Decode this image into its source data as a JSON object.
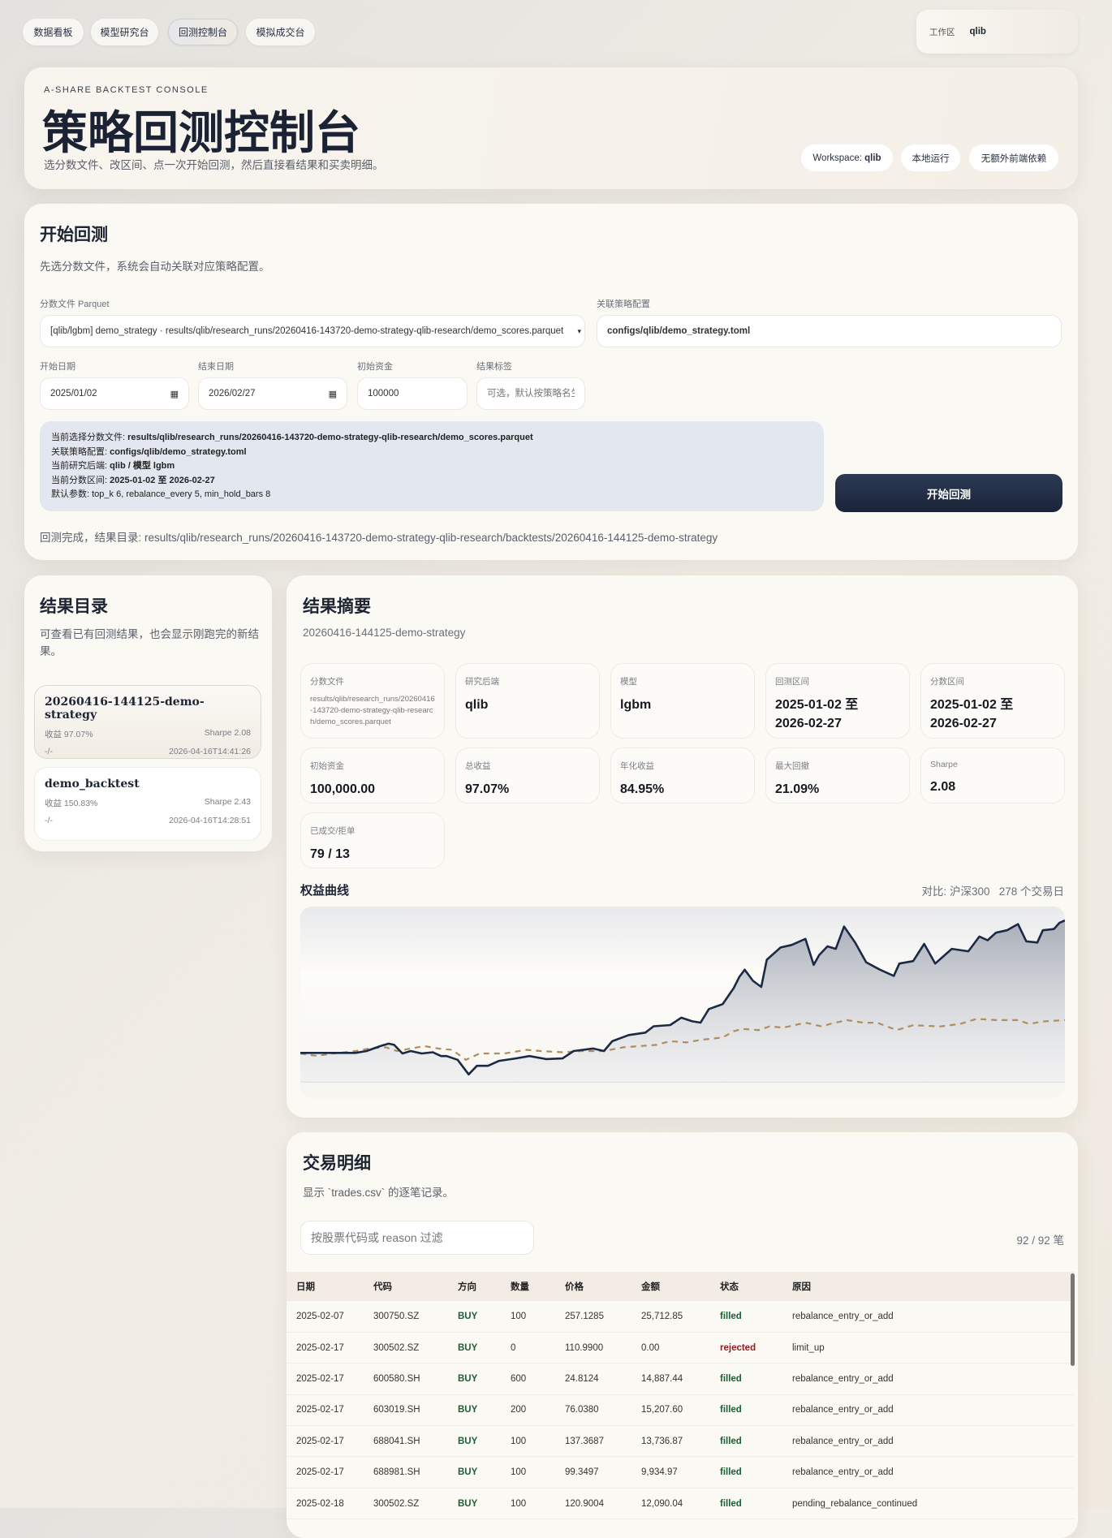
{
  "nav": {
    "tabs": [
      {
        "label": "数据看板",
        "active": false
      },
      {
        "label": "模型研究台",
        "active": false
      },
      {
        "label": "回测控制台",
        "active": true
      },
      {
        "label": "模拟成交台",
        "active": false
      }
    ],
    "workspace_label": "工作区",
    "workspace_value": "qlib"
  },
  "hero": {
    "eyebrow": "A-SHARE BACKTEST CONSOLE",
    "title": "策略回测控制台",
    "subtitle": "选分数文件、改区间、点一次开始回测，然后直接看结果和买卖明细。",
    "tags": {
      "workspace_prefix": "Workspace:",
      "workspace_value": "qlib",
      "local": "本地运行",
      "no_deps": "无额外前端依赖"
    }
  },
  "start": {
    "title": "开始回测",
    "desc": "先选分数文件，系统会自动关联对应策略配置。",
    "score_file_label": "分数文件 Parquet",
    "score_file_value": "[qlib/lgbm] demo_strategy · results/qlib/research_runs/20260416-143720-demo-strategy-qlib-research/demo_scores.parquet",
    "config_label": "关联策略配置",
    "config_value": "configs/qlib/demo_strategy.toml",
    "start_date_label": "开始日期",
    "start_date": "2025/01/02",
    "end_date_label": "结束日期",
    "end_date": "2026/02/27",
    "capital_label": "初始资金",
    "capital": "100000",
    "tag_label": "结果标签",
    "tag_placeholder": "可选，默认按策略名生成",
    "info": [
      {
        "k": "当前选择分数文件: ",
        "v": "results/qlib/research_runs/20260416-143720-demo-strategy-qlib-research/demo_scores.parquet",
        "bold": true
      },
      {
        "k": "关联策略配置: ",
        "v": "configs/qlib/demo_strategy.toml",
        "bold": true
      },
      {
        "k": "当前研究后端: ",
        "v": "qlib / 模型 lgbm",
        "bold": true
      },
      {
        "k": "当前分数区间: ",
        "v": "2025-01-02 至 2026-02-27",
        "bold": true
      },
      {
        "k": "默认参数: ",
        "v": "top_k 6, rebalance_every 5, min_hold_bars 8",
        "bold": false
      }
    ],
    "run_button": "开始回测",
    "status": "回测完成，结果目录: results/qlib/research_runs/20260416-143720-demo-strategy-qlib-research/backtests/20260416-144125-demo-strategy"
  },
  "results": {
    "title": "结果目录",
    "desc": "可查看已有回测结果，也会显示刚跑完的新结果。",
    "items": [
      {
        "name": "20260416-144125-demo-strategy",
        "ret": "收益 97.07%",
        "sharpe": "Sharpe 2.08",
        "extra": "-/-",
        "time": "2026-04-16T14:41:26",
        "selected": true
      },
      {
        "name": "demo_backtest",
        "ret": "收益 150.83%",
        "sharpe": "Sharpe 2.43",
        "extra": "-/-",
        "time": "2026-04-16T14:28:51",
        "selected": false
      }
    ]
  },
  "summary": {
    "title": "结果摘要",
    "subtitle": "20260416-144125-demo-strategy",
    "metrics": [
      {
        "k": "分数文件",
        "v": "results/qlib/research_runs/20260416-143720-demo-strategy-qlib-research/demo_scores.parquet"
      },
      {
        "k": "研究后端",
        "v": "qlib"
      },
      {
        "k": "模型",
        "v": "lgbm"
      },
      {
        "k": "回测区间",
        "v": "2025-01-02 至 2026-02-27"
      },
      {
        "k": "分数区间",
        "v": "2025-01-02 至 2026-02-27"
      },
      {
        "k": "初始资金",
        "v": "100,000.00"
      },
      {
        "k": "总收益",
        "v": "97.07%"
      },
      {
        "k": "年化收益",
        "v": "84.95%"
      },
      {
        "k": "最大回撤",
        "v": "21.09%"
      },
      {
        "k": "Sharpe",
        "v": "2.08"
      },
      {
        "k": "已成交/拒单",
        "v": "79 / 13"
      }
    ],
    "chart_title": "权益曲线",
    "chart_note": "对比: 沪深300   278 个交易日"
  },
  "chart_data": {
    "type": "line",
    "title": "权益曲线",
    "xlabel": "",
    "ylabel": "",
    "grid": false,
    "series": [
      {
        "name": "",
        "style": "solid",
        "color": "#1b2a44",
        "points": [
          [
            0,
            1.0
          ],
          [
            5,
            1.0
          ],
          [
            10,
            1.0
          ],
          [
            15,
            1.0
          ],
          [
            20,
            1.0
          ],
          [
            24,
            1.014
          ],
          [
            29,
            1.05
          ],
          [
            32,
            1.068
          ],
          [
            34,
            1.059
          ],
          [
            37,
            0.996
          ],
          [
            40,
            1.014
          ],
          [
            44,
            0.996
          ],
          [
            48,
            1.005
          ],
          [
            51,
            0.977
          ],
          [
            53,
            0.977
          ],
          [
            57,
            0.95
          ],
          [
            61,
            0.843
          ],
          [
            64,
            0.906
          ],
          [
            68,
            0.906
          ],
          [
            72,
            0.942
          ],
          [
            78,
            0.96
          ],
          [
            83,
            0.977
          ],
          [
            89,
            0.955
          ],
          [
            95,
            0.96
          ],
          [
            99,
            1.014
          ],
          [
            106,
            1.032
          ],
          [
            110,
            1.014
          ],
          [
            113,
            1.086
          ],
          [
            119,
            1.131
          ],
          [
            125,
            1.149
          ],
          [
            128,
            1.195
          ],
          [
            134,
            1.204
          ],
          [
            138,
            1.258
          ],
          [
            142,
            1.231
          ],
          [
            145,
            1.222
          ],
          [
            148,
            1.321
          ],
          [
            153,
            1.357
          ],
          [
            157,
            1.474
          ],
          [
            159,
            1.555
          ],
          [
            161,
            1.609
          ],
          [
            164,
            1.528
          ],
          [
            167,
            1.483
          ],
          [
            169,
            1.682
          ],
          [
            174,
            1.772
          ],
          [
            178,
            1.79
          ],
          [
            183,
            1.835
          ],
          [
            186,
            1.645
          ],
          [
            188,
            1.717
          ],
          [
            191,
            1.78
          ],
          [
            194,
            1.762
          ],
          [
            197,
            1.925
          ],
          [
            201,
            1.808
          ],
          [
            205,
            1.664
          ],
          [
            210,
            1.609
          ],
          [
            215,
            1.564
          ],
          [
            217,
            1.654
          ],
          [
            222,
            1.672
          ],
          [
            226,
            1.798
          ],
          [
            230,
            1.654
          ],
          [
            236,
            1.762
          ],
          [
            242,
            1.744
          ],
          [
            246,
            1.852
          ],
          [
            249,
            1.825
          ],
          [
            252,
            1.88
          ],
          [
            256,
            1.898
          ],
          [
            260,
            1.943
          ],
          [
            263,
            1.817
          ],
          [
            267,
            1.808
          ],
          [
            269,
            1.898
          ],
          [
            273,
            1.907
          ],
          [
            275,
            1.952
          ],
          [
            277,
            1.97
          ]
        ]
      },
      {
        "name": "沪深300",
        "style": "dashed",
        "color": "#b08d5e",
        "points": [
          [
            0,
            0.996
          ],
          [
            6,
            0.978
          ],
          [
            12,
            0.996
          ],
          [
            20,
            1.014
          ],
          [
            25,
            1.032
          ],
          [
            31,
            1.041
          ],
          [
            35,
            1.014
          ],
          [
            40,
            1.032
          ],
          [
            45,
            1.05
          ],
          [
            50,
            1.032
          ],
          [
            55,
            1.023
          ],
          [
            60,
            0.95
          ],
          [
            65,
            0.996
          ],
          [
            74,
            0.996
          ],
          [
            82,
            1.023
          ],
          [
            87,
            1.014
          ],
          [
            95,
            1.005
          ],
          [
            102,
            1.014
          ],
          [
            110,
            1.014
          ],
          [
            117,
            1.041
          ],
          [
            129,
            1.059
          ],
          [
            134,
            1.086
          ],
          [
            140,
            1.077
          ],
          [
            145,
            1.095
          ],
          [
            153,
            1.113
          ],
          [
            157,
            1.158
          ],
          [
            160,
            1.176
          ],
          [
            166,
            1.167
          ],
          [
            170,
            1.194
          ],
          [
            175,
            1.185
          ],
          [
            183,
            1.221
          ],
          [
            189,
            1.194
          ],
          [
            192,
            1.212
          ],
          [
            198,
            1.24
          ],
          [
            204,
            1.221
          ],
          [
            209,
            1.221
          ],
          [
            216,
            1.167
          ],
          [
            222,
            1.203
          ],
          [
            232,
            1.194
          ],
          [
            239,
            1.212
          ],
          [
            245,
            1.249
          ],
          [
            252,
            1.24
          ],
          [
            260,
            1.24
          ],
          [
            264,
            1.212
          ],
          [
            269,
            1.23
          ],
          [
            277,
            1.24
          ]
        ]
      }
    ]
  },
  "trades": {
    "title": "交易明细",
    "desc": "显示 `trades.csv` 的逐笔记录。",
    "filter_placeholder": "按股票代码或 reason 过滤",
    "count": "92 / 92 笔",
    "columns": [
      "日期",
      "代码",
      "方向",
      "数量",
      "价格",
      "金额",
      "状态",
      "原因"
    ],
    "rows": [
      [
        "2025-02-07",
        "300750.SZ",
        "BUY",
        "100",
        "257.1285",
        "25,712.85",
        "filled",
        "rebalance_entry_or_add"
      ],
      [
        "2025-02-17",
        "300502.SZ",
        "BUY",
        "0",
        "110.9900",
        "0.00",
        "rejected",
        "limit_up"
      ],
      [
        "2025-02-17",
        "600580.SH",
        "BUY",
        "600",
        "24.8124",
        "14,887.44",
        "filled",
        "rebalance_entry_or_add"
      ],
      [
        "2025-02-17",
        "603019.SH",
        "BUY",
        "200",
        "76.0380",
        "15,207.60",
        "filled",
        "rebalance_entry_or_add"
      ],
      [
        "2025-02-17",
        "688041.SH",
        "BUY",
        "100",
        "137.3687",
        "13,736.87",
        "filled",
        "rebalance_entry_or_add"
      ],
      [
        "2025-02-17",
        "688981.SH",
        "BUY",
        "100",
        "99.3497",
        "9,934.97",
        "filled",
        "rebalance_entry_or_add"
      ],
      [
        "2025-02-18",
        "300502.SZ",
        "BUY",
        "100",
        "120.9004",
        "12,090.04",
        "filled",
        "pending_rebalance_continued"
      ]
    ]
  }
}
